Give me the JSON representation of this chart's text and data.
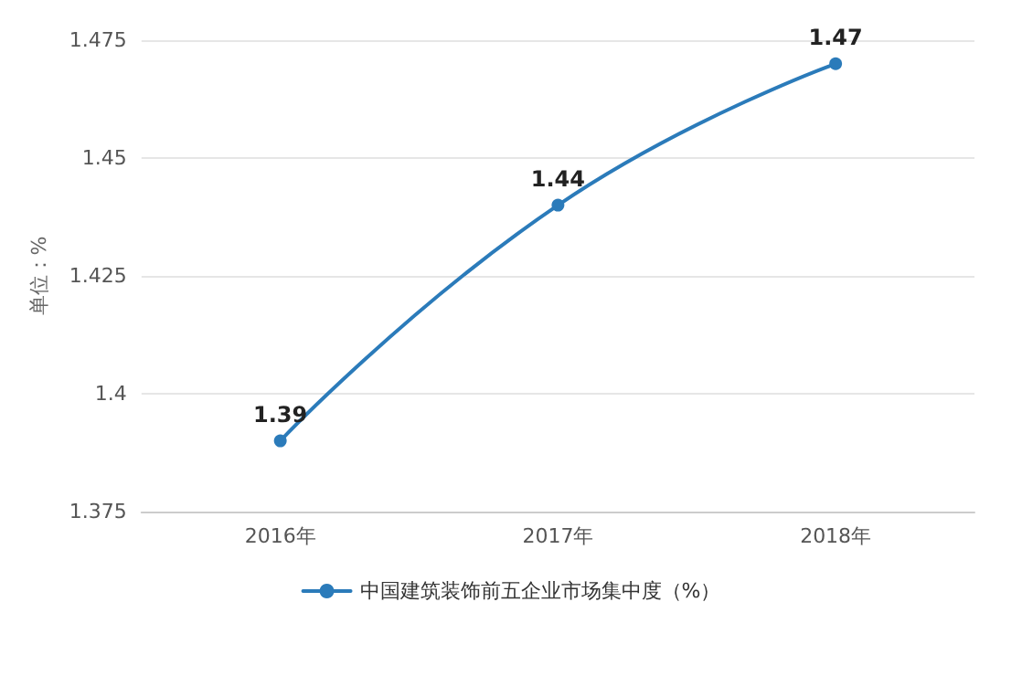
{
  "chart_data": {
    "type": "line",
    "ylabel": "单位：%",
    "categories": [
      "2016年",
      "2017年",
      "2018年"
    ],
    "series": [
      {
        "name": "中国建筑装饰前五企业市场集中度（%）",
        "color": "#2b7bba",
        "values": [
          1.39,
          1.44,
          1.47
        ]
      }
    ],
    "ylim": [
      1.375,
      1.475
    ],
    "yticks": [
      1.375,
      1.4,
      1.425,
      1.45,
      1.475
    ],
    "grid": "y",
    "legend": "bottom",
    "marker": "circle",
    "data_labels": true
  }
}
